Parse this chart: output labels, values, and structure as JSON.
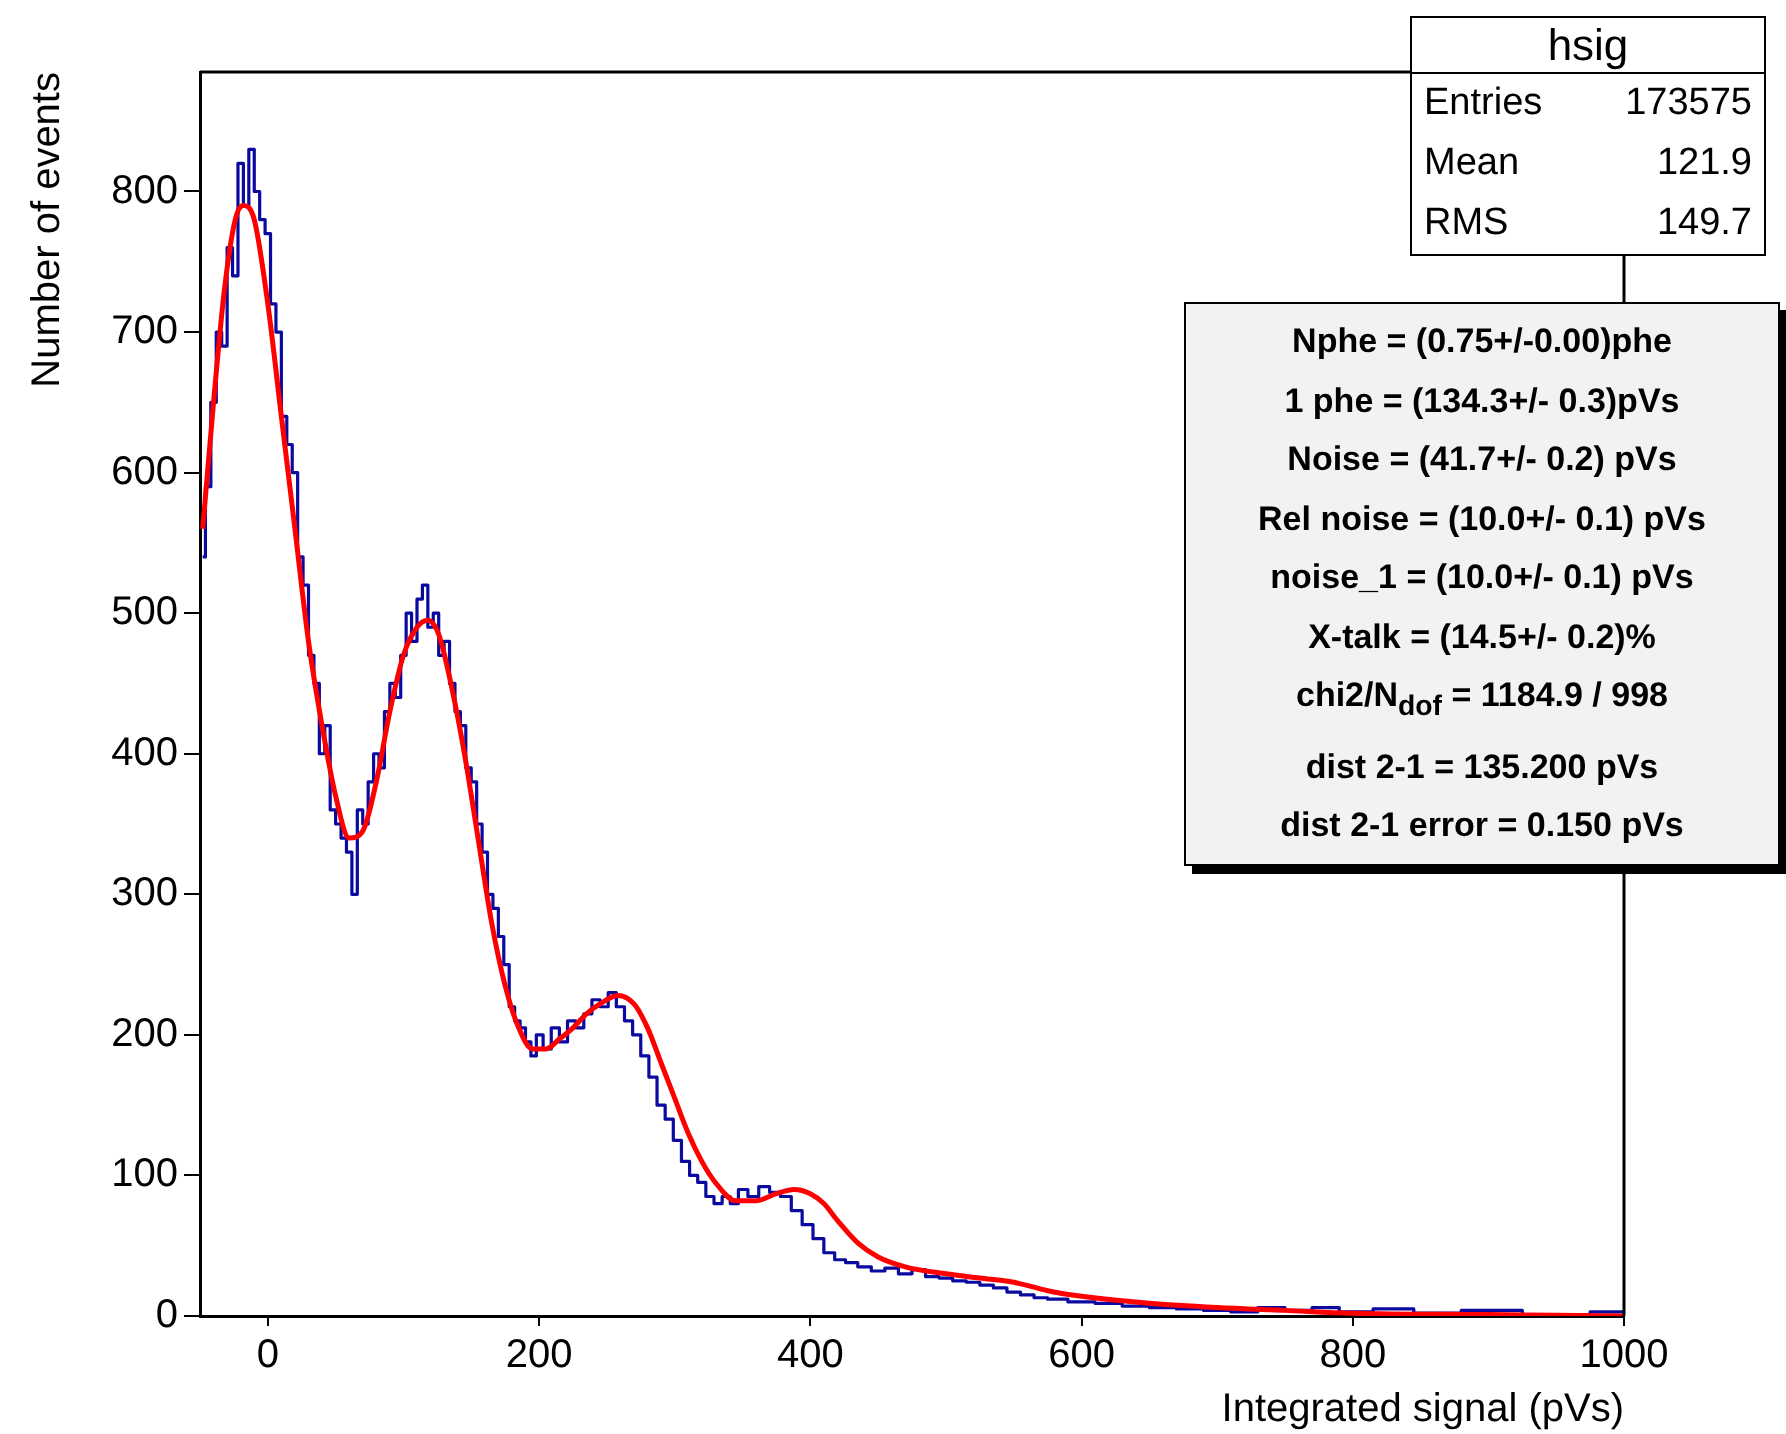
{
  "chart_data": {
    "type": "step",
    "xlabel": "Integrated signal (pVs)",
    "ylabel": "Number of events",
    "xlim": [
      -50,
      1000
    ],
    "ylim": [
      0,
      885
    ],
    "xticks": [
      0,
      200,
      400,
      600,
      800,
      1000
    ],
    "yticks": [
      0,
      100,
      200,
      300,
      400,
      500,
      600,
      700,
      800
    ],
    "grid": false,
    "legend": false,
    "series": [
      {
        "color": "#0a0aa0",
        "x": [
          -48,
          -44,
          -40,
          -36,
          -32,
          -28,
          -24,
          -20,
          -16,
          -12,
          -8,
          -4,
          0,
          4,
          8,
          12,
          16,
          20,
          24,
          28,
          32,
          36,
          40,
          44,
          48,
          52,
          56,
          60,
          64,
          68,
          72,
          76,
          80,
          84,
          88,
          92,
          96,
          100,
          104,
          108,
          112,
          116,
          120,
          124,
          128,
          132,
          136,
          140,
          144,
          148,
          152,
          156,
          160,
          164,
          168,
          172,
          176,
          180,
          184,
          188,
          192,
          196,
          200,
          206,
          212,
          218,
          224,
          230,
          236,
          242,
          248,
          254,
          260,
          266,
          272,
          278,
          284,
          290,
          296,
          302,
          308,
          314,
          320,
          326,
          332,
          338,
          344,
          350,
          358,
          366,
          374,
          382,
          390,
          398,
          406,
          414,
          422,
          430,
          440,
          450,
          460,
          470,
          480,
          490,
          500,
          510,
          520,
          530,
          540,
          550,
          560,
          570,
          580,
          600,
          620,
          640,
          660,
          680,
          700,
          720,
          740,
          760,
          780,
          800,
          830,
          860,
          900,
          950,
          1000
        ],
        "values": [
          540,
          590,
          650,
          700,
          690,
          760,
          740,
          820,
          790,
          830,
          800,
          780,
          770,
          720,
          700,
          640,
          620,
          600,
          540,
          520,
          470,
          450,
          400,
          420,
          360,
          350,
          340,
          330,
          300,
          360,
          350,
          380,
          400,
          390,
          430,
          450,
          440,
          470,
          500,
          480,
          510,
          520,
          490,
          500,
          470,
          480,
          450,
          430,
          420,
          390,
          380,
          350,
          330,
          300,
          290,
          270,
          250,
          220,
          210,
          205,
          195,
          185,
          200,
          190,
          205,
          195,
          210,
          205,
          215,
          225,
          220,
          230,
          220,
          210,
          200,
          185,
          170,
          150,
          140,
          125,
          110,
          100,
          95,
          85,
          80,
          85,
          80,
          90,
          85,
          92,
          88,
          85,
          75,
          65,
          55,
          45,
          40,
          38,
          35,
          32,
          34,
          30,
          33,
          28,
          27,
          25,
          24,
          22,
          20,
          17,
          15,
          13,
          12,
          10,
          9,
          7,
          6,
          5,
          4,
          3,
          6,
          4,
          6,
          3,
          5,
          2,
          4,
          1,
          3
        ]
      },
      {
        "type": "line",
        "color": "#ff0000",
        "x": [
          -48,
          -40,
          -32,
          -24,
          -18,
          -10,
          0,
          10,
          20,
          30,
          40,
          50,
          60,
          70,
          80,
          90,
          100,
          110,
          118,
          126,
          135,
          145,
          155,
          165,
          175,
          185,
          195,
          205,
          215,
          225,
          235,
          245,
          258,
          270,
          280,
          290,
          300,
          310,
          320,
          330,
          345,
          360,
          375,
          388,
          400,
          410,
          420,
          435,
          450,
          470,
          500,
          525,
          550,
          575,
          600,
          650,
          700,
          750,
          800,
          900,
          1000
        ],
        "values": [
          560,
          650,
          730,
          780,
          790,
          780,
          720,
          640,
          560,
          480,
          420,
          370,
          340,
          345,
          380,
          430,
          470,
          490,
          495,
          485,
          450,
          400,
          340,
          280,
          235,
          205,
          190,
          190,
          197,
          205,
          215,
          222,
          228,
          222,
          205,
          180,
          155,
          130,
          110,
          95,
          82,
          82,
          87,
          90,
          87,
          80,
          68,
          52,
          42,
          35,
          30,
          27,
          24,
          18,
          14,
          9,
          6,
          4,
          2,
          1,
          0
        ]
      }
    ],
    "annotations": [
      "hsig",
      "Entries",
      "173575",
      "Mean",
      "121.9",
      "RMS",
      "149.7",
      "Nphe = (0.75+/-0.00)phe",
      "1 phe = (134.3+/- 0.3)pVs",
      "Noise = (41.7+/- 0.2) pVs",
      "Rel noise = (10.0+/- 0.1) pVs",
      "noise_1 = (10.0+/- 0.1) pVs",
      "X-talk = (14.5+/- 0.2)%",
      "chi2/N$_{dof}$ = 1184.9 / 998",
      "dist 2-1 = 135.200 pVs",
      "dist 2-1 error = 0.150 pVs"
    ]
  }
}
